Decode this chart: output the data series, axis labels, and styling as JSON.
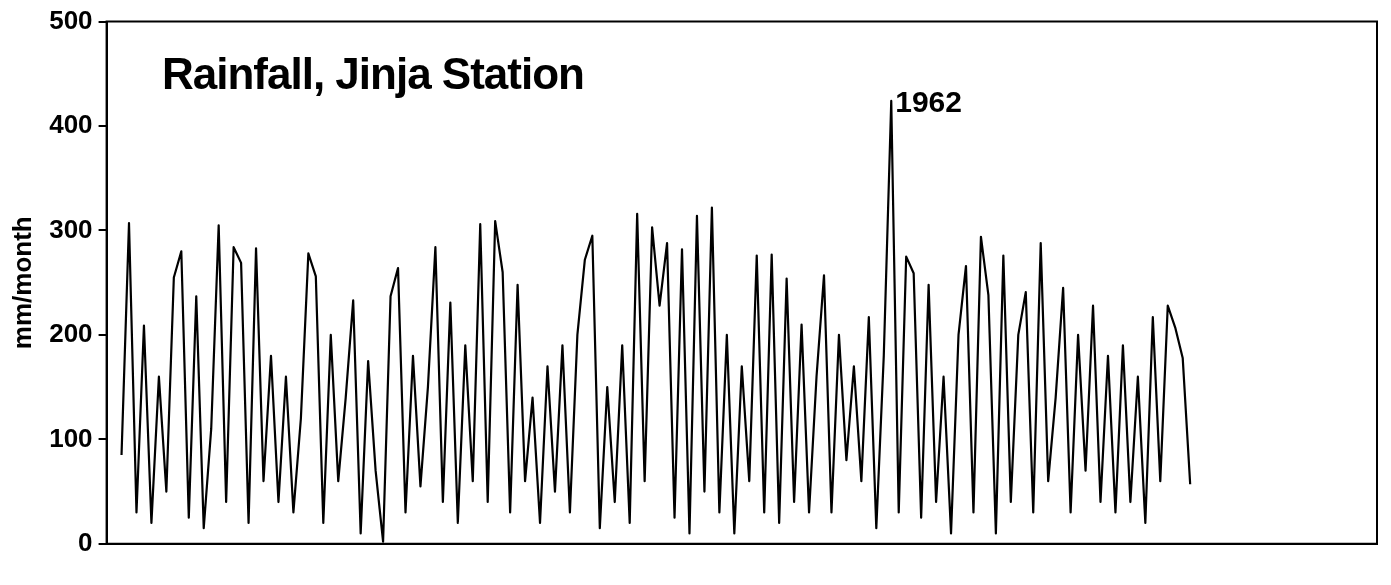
{
  "chart_data": {
    "type": "line",
    "title": "Rainfall, Jinja Station",
    "ylabel": "mm/month",
    "categories": [
      null,
      null,
      null,
      null,
      null,
      null,
      null,
      null,
      null,
      null,
      null,
      null,
      null,
      null,
      null,
      null,
      null,
      null,
      null,
      null,
      null,
      null,
      null,
      null,
      null,
      null,
      null,
      null,
      null,
      null,
      null,
      null,
      null,
      null,
      null,
      null,
      null,
      null,
      null,
      null,
      null,
      null,
      null,
      null,
      null,
      null,
      null,
      null,
      null,
      null,
      null,
      null,
      null,
      null,
      null,
      null,
      null,
      null,
      null,
      null,
      null,
      null,
      null,
      null,
      null,
      null,
      null,
      null,
      null,
      null,
      null,
      null,
      null,
      null,
      null,
      null,
      null,
      null,
      null,
      null,
      null,
      null,
      null,
      null,
      null,
      null,
      null,
      null,
      null,
      null,
      null,
      null,
      null,
      null,
      null,
      null,
      null,
      null,
      null,
      null,
      null,
      null,
      null,
      null,
      null,
      null,
      null,
      null,
      null,
      null,
      null,
      null,
      null,
      null,
      null,
      null,
      null,
      null,
      null,
      null,
      null,
      null,
      null,
      null,
      null,
      null,
      null,
      null,
      null,
      null,
      null,
      null,
      null,
      null,
      null,
      null,
      null,
      null,
      null,
      null,
      null,
      null,
      null,
      null,
      null,
      null,
      null,
      null,
      null,
      null,
      null,
      null,
      null,
      null,
      null,
      null,
      null,
      null,
      null,
      null,
      null,
      null,
      null,
      null,
      null,
      null,
      null,
      null,
      null,
      null,
      null
    ],
    "series": [
      {
        "color": "#000000",
        "values": [
          null,
          null,
          85,
          307,
          30,
          209,
          20,
          160,
          50,
          255,
          280,
          25,
          237,
          15,
          110,
          305,
          40,
          284,
          269,
          20,
          283,
          60,
          180,
          40,
          160,
          30,
          120,
          278,
          256,
          20,
          200,
          60,
          140,
          233,
          10,
          175,
          70,
          2,
          237,
          264,
          30,
          180,
          55,
          150,
          284,
          40,
          231,
          20,
          190,
          60,
          306,
          40,
          309,
          260,
          30,
          248,
          60,
          140,
          20,
          170,
          50,
          190,
          30,
          200,
          272,
          295,
          15,
          150,
          40,
          190,
          20,
          316,
          60,
          303,
          228,
          288,
          25,
          282,
          10,
          314,
          50,
          322,
          30,
          200,
          10,
          170,
          60,
          276,
          30,
          277,
          20,
          254,
          40,
          210,
          30,
          160,
          257,
          30,
          200,
          80,
          170,
          60,
          217,
          15,
          180,
          424,
          30,
          275,
          259,
          25,
          248,
          40,
          160,
          10,
          200,
          266,
          30,
          294,
          238,
          10,
          276,
          40,
          200,
          241,
          30,
          288,
          60,
          140,
          245,
          30,
          200,
          70,
          228,
          40,
          180,
          30,
          190,
          40,
          160,
          20,
          217,
          60,
          228,
          207,
          178,
          57,
          null,
          null,
          null,
          null,
          null,
          null,
          null,
          null,
          null,
          null,
          null,
          null,
          null,
          null,
          null,
          null,
          null,
          null,
          null,
          null,
          null,
          null,
          null,
          null,
          null
        ]
      }
    ],
    "ylim": [
      0,
      500
    ],
    "yticks": [
      0,
      100,
      200,
      300,
      400,
      500
    ],
    "annotations": [
      "1962"
    ],
    "grid": false,
    "legend": false,
    "marker": "none",
    "line_style": "solid"
  }
}
